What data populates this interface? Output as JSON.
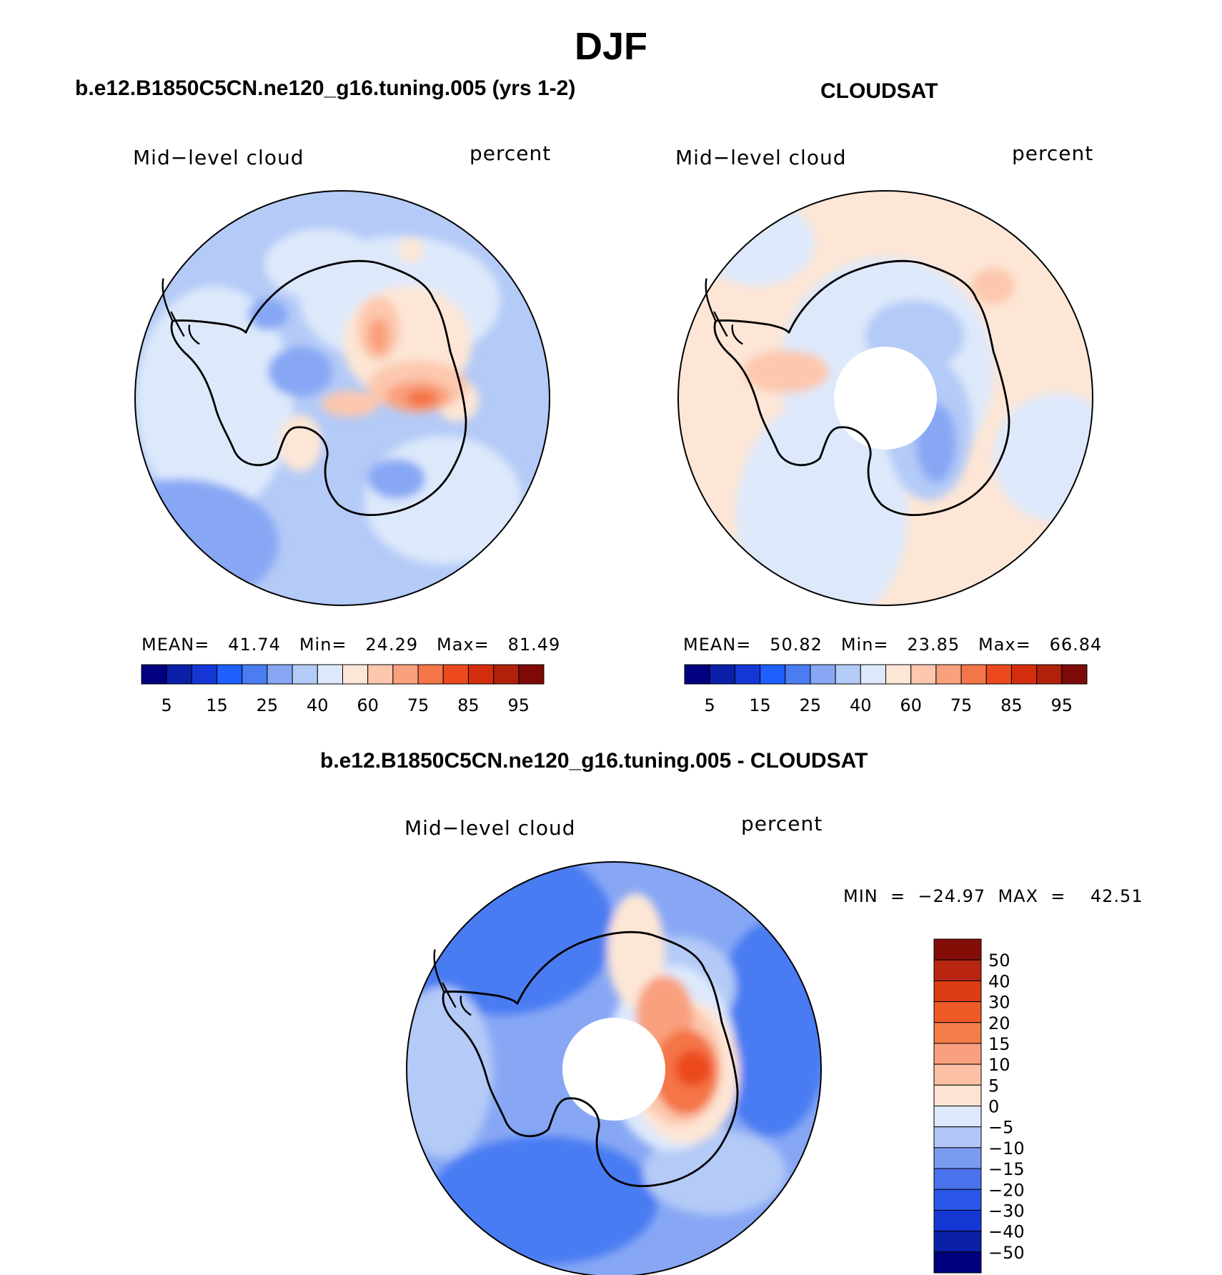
{
  "page_title": "DJF",
  "panels": [
    {
      "title": "b.e12.B1850C5CN.ne120_g16.tuning.005 (yrs 1-2)",
      "variable": "Mid−level cloud",
      "units": "percent",
      "stats_text": "MEAN=   41.74   Min=   24.29   Max=   81.49"
    },
    {
      "title": "CLOUDSAT",
      "variable": "Mid−level cloud",
      "units": "percent",
      "stats_text": "MEAN=   50.82   Min=   23.85   Max=   66.84"
    },
    {
      "title": "b.e12.B1850C5CN.ne120_g16.tuning.005 - CLOUDSAT",
      "variable": "Mid−level cloud",
      "units": "percent",
      "stats_text": "MIN  =  −24.97  MAX  =    42.51"
    }
  ],
  "colors": {
    "abs_scale": [
      "#000080",
      "#0a1fa8",
      "#1437d4",
      "#1f5fff",
      "#4a7cf2",
      "#87a7f5",
      "#b4caf7",
      "#dde9fb",
      "#fde6d6",
      "#fcc7ad",
      "#f9a07e",
      "#f47547",
      "#ec4a1e",
      "#d42c0f",
      "#b0200b",
      "#7d0a06"
    ],
    "diff_scale": [
      "#00007e",
      "#0a1fa8",
      "#1437d4",
      "#2a56e8",
      "#4a72ec",
      "#7b9bef",
      "#b1c6f6",
      "#dce8fb",
      "#fde4d2",
      "#fcc1a4",
      "#f8a07f",
      "#f47d4a",
      "#ef5a27",
      "#dc3c12",
      "#b82611",
      "#850d08"
    ],
    "coastline": "#000000"
  },
  "chart_data": [
    {
      "type": "heatmap",
      "projection": "south polar stereographic",
      "title": "b.e12.B1850C5CN.ne120_g16.tuning.005 (yrs 1-2)",
      "variable": "Mid-level cloud",
      "units": "percent",
      "mean": 41.74,
      "min": 24.29,
      "max": 81.49,
      "colorbar": {
        "orientation": "horizontal",
        "levels": [
          5,
          15,
          25,
          40,
          60,
          75,
          85,
          95
        ]
      }
    },
    {
      "type": "heatmap",
      "projection": "south polar stereographic",
      "title": "CLOUDSAT",
      "variable": "Mid-level cloud",
      "units": "percent",
      "mean": 50.82,
      "min": 23.85,
      "max": 66.84,
      "missing_data_over_pole": true,
      "colorbar": {
        "orientation": "horizontal",
        "levels": [
          5,
          15,
          25,
          40,
          60,
          75,
          85,
          95
        ]
      }
    },
    {
      "type": "heatmap",
      "projection": "south polar stereographic",
      "title": "b.e12.B1850C5CN.ne120_g16.tuning.005 - CLOUDSAT",
      "variable": "Mid-level cloud",
      "units": "percent",
      "min": -24.97,
      "max": 42.51,
      "missing_data_over_pole": true,
      "colorbar": {
        "orientation": "vertical",
        "levels": [
          50,
          40,
          30,
          20,
          15,
          10,
          5,
          0,
          -5,
          -10,
          -15,
          -20,
          -30,
          -40,
          -50
        ]
      }
    }
  ],
  "colorbar_labels": {
    "abs": [
      "5",
      "15",
      "25",
      "40",
      "60",
      "75",
      "85",
      "95"
    ],
    "diff": [
      "50",
      "40",
      "30",
      "20",
      "15",
      "10",
      "5",
      "0",
      "−5",
      "−10",
      "−15",
      "−20",
      "−30",
      "−40",
      "−50"
    ]
  }
}
